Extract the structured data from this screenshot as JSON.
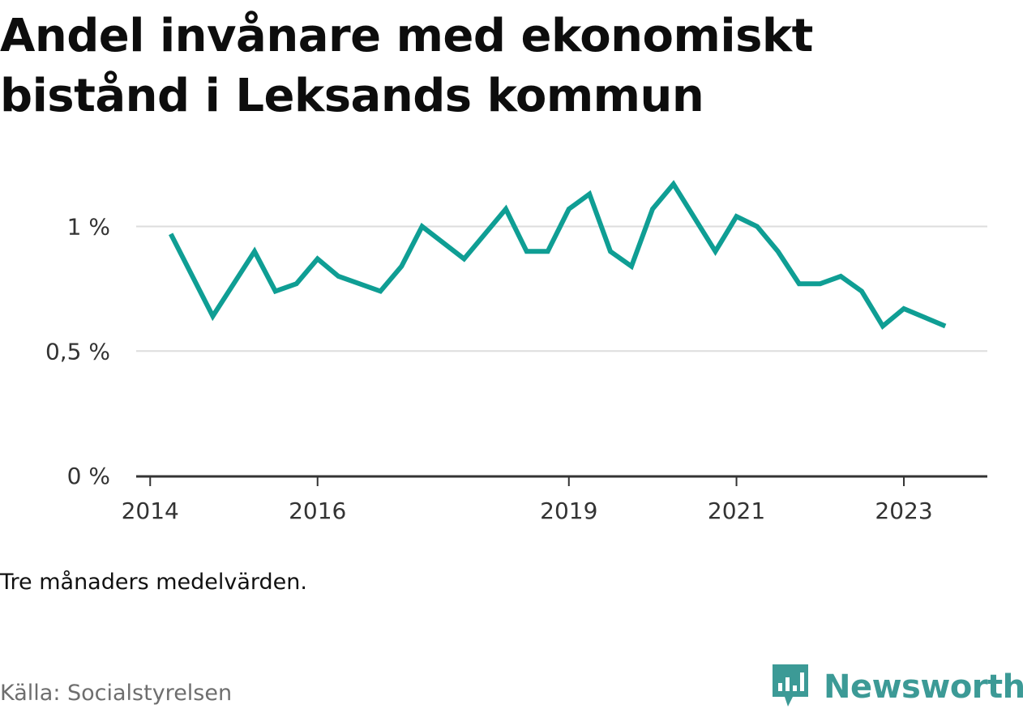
{
  "title": "Andel invånare med ekonomiskt bistånd i Leksands kommun",
  "note": "Tre månaders medelvärden.",
  "source": "Källa: Socialstyrelsen",
  "brand": {
    "name": "Newsworthy",
    "color": "#3c9a96",
    "icon": "bar-chart-speech-bubble-icon"
  },
  "colors": {
    "line": "#0f9e94",
    "grid": "#dddddd",
    "axis": "#333333"
  },
  "chart_data": {
    "type": "line",
    "title": "Andel invånare med ekonomiskt bistånd i Leksands kommun",
    "xlabel": "",
    "ylabel": "",
    "ylim": [
      0,
      1.2
    ],
    "xlim": [
      "2013-11-01",
      "2023-12-31"
    ],
    "grid": true,
    "y_ticks": [
      {
        "value": 0,
        "label": "0 %"
      },
      {
        "value": 0.5,
        "label": "0,5 %"
      },
      {
        "value": 1,
        "label": "1 %"
      }
    ],
    "x_ticks": [
      {
        "value": "2014-01-01",
        "label": "2014"
      },
      {
        "value": "2016-01-01",
        "label": "2016"
      },
      {
        "value": "2019-01-01",
        "label": "2019"
      },
      {
        "value": "2021-01-01",
        "label": "2021"
      },
      {
        "value": "2023-01-01",
        "label": "2023"
      }
    ],
    "series": [
      {
        "name": "",
        "points": [
          {
            "x": "2014-04-01",
            "y": 0.97
          },
          {
            "x": "2014-10-01",
            "y": 0.64
          },
          {
            "x": "2015-04-01",
            "y": 0.9
          },
          {
            "x": "2015-07-01",
            "y": 0.74
          },
          {
            "x": "2015-10-01",
            "y": 0.77
          },
          {
            "x": "2016-01-01",
            "y": 0.87
          },
          {
            "x": "2016-04-01",
            "y": 0.8
          },
          {
            "x": "2016-10-01",
            "y": 0.74
          },
          {
            "x": "2017-01-01",
            "y": 0.84
          },
          {
            "x": "2017-04-01",
            "y": 1.0
          },
          {
            "x": "2017-10-01",
            "y": 0.87
          },
          {
            "x": "2018-04-01",
            "y": 1.07
          },
          {
            "x": "2018-07-01",
            "y": 0.9
          },
          {
            "x": "2018-10-01",
            "y": 0.9
          },
          {
            "x": "2019-01-01",
            "y": 1.07
          },
          {
            "x": "2019-04-01",
            "y": 1.13
          },
          {
            "x": "2019-07-01",
            "y": 0.9
          },
          {
            "x": "2019-10-01",
            "y": 0.84
          },
          {
            "x": "2020-01-01",
            "y": 1.07
          },
          {
            "x": "2020-04-01",
            "y": 1.17
          },
          {
            "x": "2020-10-01",
            "y": 0.9
          },
          {
            "x": "2021-01-01",
            "y": 1.04
          },
          {
            "x": "2021-04-01",
            "y": 1.0
          },
          {
            "x": "2021-07-01",
            "y": 0.9
          },
          {
            "x": "2021-10-01",
            "y": 0.77
          },
          {
            "x": "2022-01-01",
            "y": 0.77
          },
          {
            "x": "2022-04-01",
            "y": 0.8
          },
          {
            "x": "2022-07-01",
            "y": 0.74
          },
          {
            "x": "2022-10-01",
            "y": 0.6
          },
          {
            "x": "2023-01-01",
            "y": 0.67
          },
          {
            "x": "2023-07-01",
            "y": 0.6
          }
        ]
      }
    ]
  }
}
